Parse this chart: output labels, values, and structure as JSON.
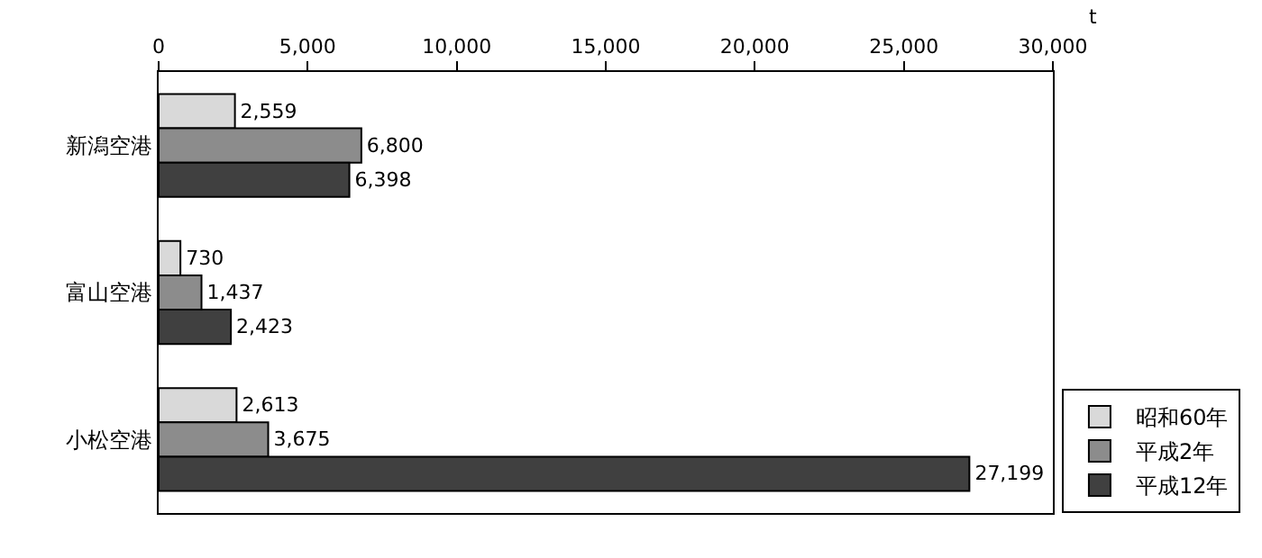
{
  "chart_data": {
    "type": "bar",
    "orientation": "horizontal",
    "xlabel": "t",
    "categories": [
      "新潟空港",
      "富山空港",
      "小松空港"
    ],
    "series": [
      {
        "name": "昭和60年",
        "color": "#d9d9d9",
        "values": [
          2559,
          730,
          2613
        ],
        "value_labels": [
          "2,559",
          "730",
          "2,613"
        ]
      },
      {
        "name": "平成2年",
        "color": "#8c8c8c",
        "values": [
          6800,
          1437,
          3675
        ],
        "value_labels": [
          "6,800",
          "1,437",
          "3,675"
        ]
      },
      {
        "name": "平成12年",
        "color": "#404040",
        "values": [
          6398,
          2423,
          27199
        ],
        "value_labels": [
          "6,398",
          "2,423",
          "27,199"
        ]
      }
    ],
    "xlim": [
      0,
      30000
    ],
    "xticks": [
      {
        "value": 0,
        "label": "0"
      },
      {
        "value": 5000,
        "label": "5,000"
      },
      {
        "value": 10000,
        "label": "10,000"
      },
      {
        "value": 15000,
        "label": "15,000"
      },
      {
        "value": 20000,
        "label": "20,000"
      },
      {
        "value": 25000,
        "label": "25,000"
      },
      {
        "value": 30000,
        "label": "30,000"
      }
    ],
    "legend": "bottom right"
  }
}
